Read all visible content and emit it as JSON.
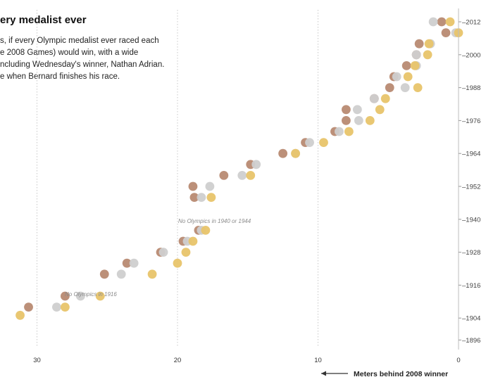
{
  "title": "ery medalist ever",
  "description_lines": [
    "s, if every Olympic medalist ever raced each",
    "e 2008 Games) would win, with a wide",
    "ncluding Wednesday's winner, Nathan Adrian.",
    "e when Bernard finishes his race."
  ],
  "chart_data": {
    "type": "scatter",
    "xlabel": "Meters behind 2008 winner",
    "x_reversed": true,
    "xlim": [
      31.5,
      0
    ],
    "ylim": [
      1895,
      2014
    ],
    "x_ticks": [
      "30",
      "20",
      "10",
      "0"
    ],
    "y_ticks": [
      "2012",
      "2000",
      "1988",
      "1976",
      "1964",
      "1952",
      "1940",
      "1928",
      "1916",
      "1904",
      "1896"
    ],
    "annotations": [
      "No Olympics in 1916",
      "No Olympics in 1940 or 1944"
    ],
    "colors": {
      "gold": "#e8c46a",
      "silver": "#cfcfcf",
      "bronze": "#b88a72"
    },
    "series": [
      {
        "color_key": "bronze",
        "points": [
          {
            "x": 30.6,
            "y": 1908
          },
          {
            "x": 28.0,
            "y": 1912
          },
          {
            "x": 25.2,
            "y": 1920
          },
          {
            "x": 23.6,
            "y": 1924
          },
          {
            "x": 21.2,
            "y": 1928
          },
          {
            "x": 19.6,
            "y": 1932
          },
          {
            "x": 18.5,
            "y": 1936
          },
          {
            "x": 18.8,
            "y": 1948
          },
          {
            "x": 18.9,
            "y": 1952
          },
          {
            "x": 16.7,
            "y": 1956
          },
          {
            "x": 14.8,
            "y": 1960
          },
          {
            "x": 12.5,
            "y": 1964
          },
          {
            "x": 10.9,
            "y": 1968
          },
          {
            "x": 8.8,
            "y": 1972
          },
          {
            "x": 8.0,
            "y": 1976
          },
          {
            "x": 8.0,
            "y": 1980
          },
          {
            "x": 6.0,
            "y": 1984
          },
          {
            "x": 4.9,
            "y": 1988
          },
          {
            "x": 4.6,
            "y": 1992
          },
          {
            "x": 3.7,
            "y": 1996
          },
          {
            "x": 3.0,
            "y": 2000
          },
          {
            "x": 2.8,
            "y": 2004
          },
          {
            "x": 0.9,
            "y": 2008
          },
          {
            "x": 1.2,
            "y": 2012
          }
        ]
      },
      {
        "color_key": "silver",
        "points": [
          {
            "x": 28.6,
            "y": 1908
          },
          {
            "x": 26.9,
            "y": 1912
          },
          {
            "x": 24.0,
            "y": 1920
          },
          {
            "x": 23.1,
            "y": 1924
          },
          {
            "x": 21.0,
            "y": 1928
          },
          {
            "x": 19.3,
            "y": 1932
          },
          {
            "x": 18.3,
            "y": 1936
          },
          {
            "x": 18.3,
            "y": 1948
          },
          {
            "x": 17.7,
            "y": 1952
          },
          {
            "x": 15.4,
            "y": 1956
          },
          {
            "x": 14.4,
            "y": 1960
          },
          {
            "x": 11.6,
            "y": 1964
          },
          {
            "x": 10.6,
            "y": 1968
          },
          {
            "x": 8.5,
            "y": 1972
          },
          {
            "x": 7.1,
            "y": 1976
          },
          {
            "x": 7.2,
            "y": 1980
          },
          {
            "x": 6.0,
            "y": 1984
          },
          {
            "x": 3.8,
            "y": 1988
          },
          {
            "x": 4.4,
            "y": 1992
          },
          {
            "x": 3.0,
            "y": 1996
          },
          {
            "x": 3.0,
            "y": 2000
          },
          {
            "x": 2.0,
            "y": 2004
          },
          {
            "x": 0.2,
            "y": 2008
          },
          {
            "x": 1.8,
            "y": 2012
          }
        ]
      },
      {
        "color_key": "gold",
        "points": [
          {
            "x": 31.2,
            "y": 1905
          },
          {
            "x": 28.0,
            "y": 1908
          },
          {
            "x": 25.5,
            "y": 1912
          },
          {
            "x": 21.8,
            "y": 1920
          },
          {
            "x": 20.0,
            "y": 1924
          },
          {
            "x": 19.4,
            "y": 1928
          },
          {
            "x": 18.9,
            "y": 1932
          },
          {
            "x": 18.0,
            "y": 1936
          },
          {
            "x": 17.6,
            "y": 1948
          },
          {
            "x": 14.8,
            "y": 1956
          },
          {
            "x": 11.6,
            "y": 1964
          },
          {
            "x": 9.6,
            "y": 1968
          },
          {
            "x": 7.8,
            "y": 1972
          },
          {
            "x": 6.3,
            "y": 1976
          },
          {
            "x": 5.6,
            "y": 1980
          },
          {
            "x": 5.2,
            "y": 1984
          },
          {
            "x": 2.9,
            "y": 1988
          },
          {
            "x": 3.6,
            "y": 1992
          },
          {
            "x": 3.1,
            "y": 1996
          },
          {
            "x": 2.2,
            "y": 2000
          },
          {
            "x": 2.1,
            "y": 2004
          },
          {
            "x": 0.0,
            "y": 2008
          },
          {
            "x": 0.6,
            "y": 2012
          }
        ]
      }
    ]
  }
}
